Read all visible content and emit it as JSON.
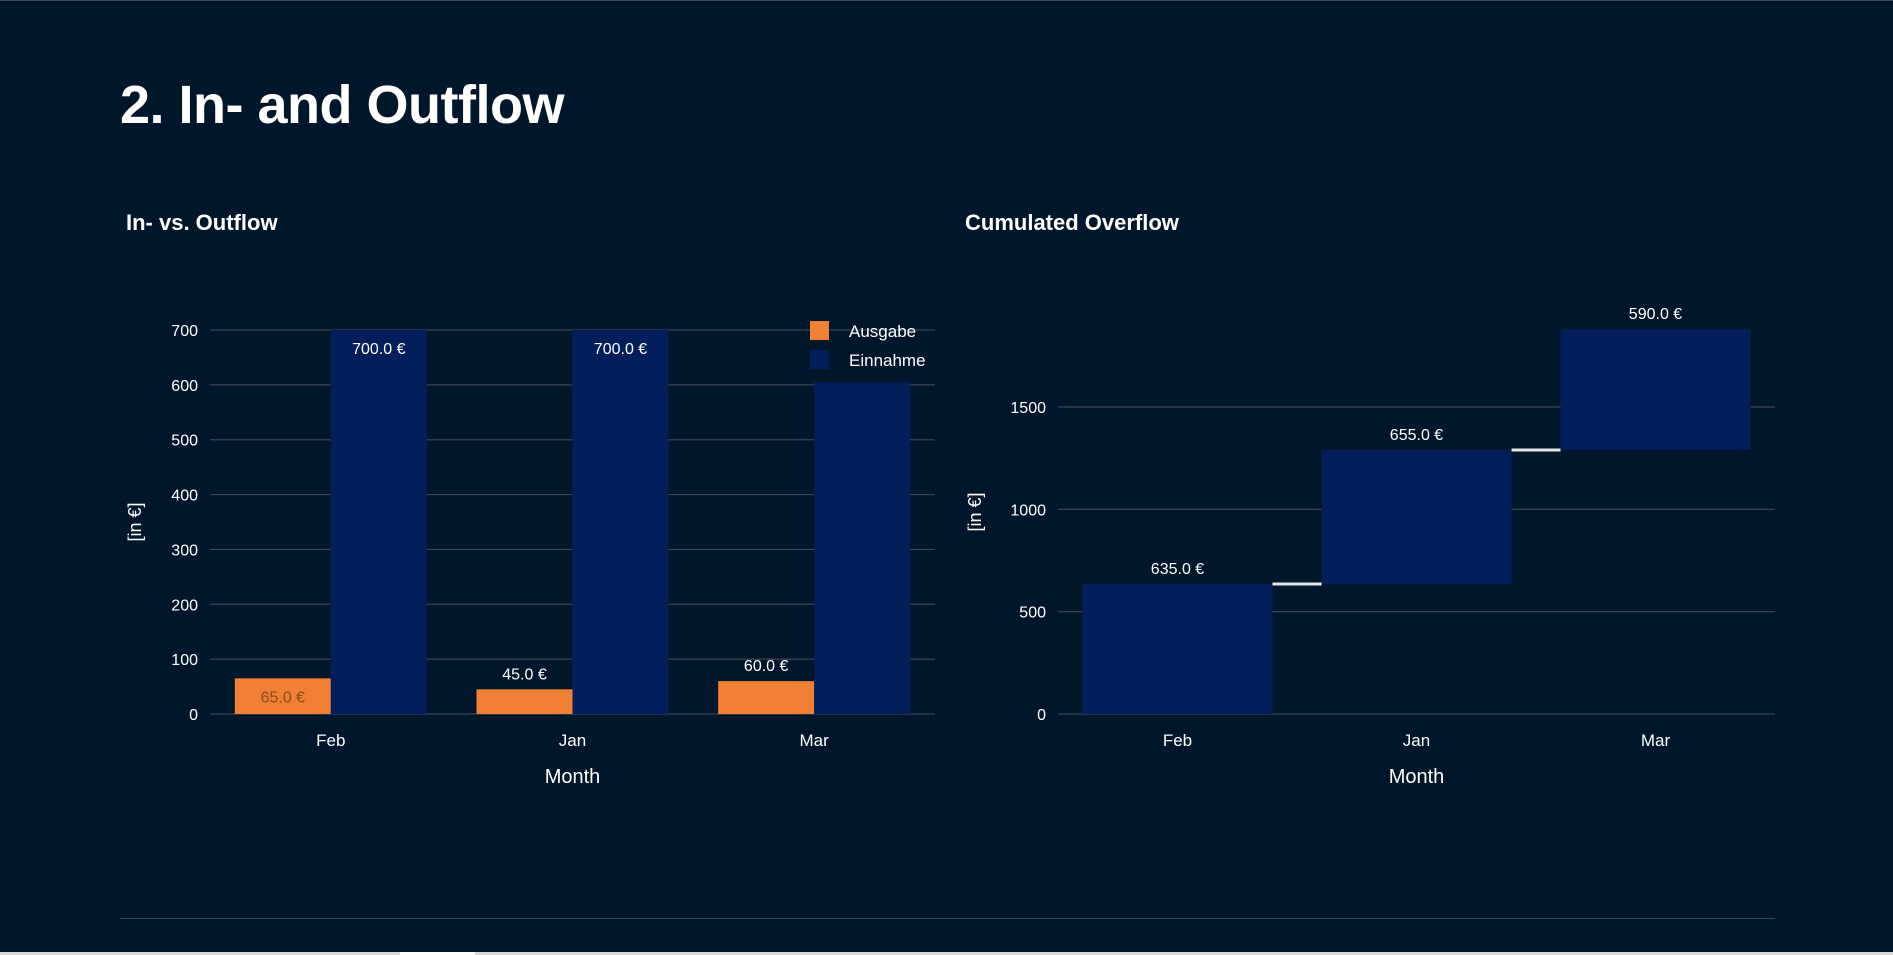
{
  "page": {
    "title": "2. In- and Outflow"
  },
  "colors": {
    "background": "#00162b",
    "einnahme": "#041e5c",
    "ausgabe": "#ef8035",
    "grid": "#3b4755",
    "connector": "#e6e6e6"
  },
  "chart_data": [
    {
      "type": "bar",
      "title": "In- vs. Outflow",
      "xlabel": "Month",
      "ylabel": "[in €]",
      "categories": [
        "Feb",
        "Jan",
        "Mar"
      ],
      "ylim": [
        0,
        700
      ],
      "yticks": [
        0,
        100,
        200,
        300,
        400,
        500,
        600,
        700
      ],
      "grid": true,
      "legend_position": "top-right",
      "series": [
        {
          "name": "Ausgabe",
          "values": [
            65,
            45,
            60
          ],
          "labels": [
            "65.0 €",
            "45.0 €",
            "60.0 €"
          ],
          "color": "#ef8035"
        },
        {
          "name": "Einnahme",
          "values": [
            700,
            700,
            605
          ],
          "labels": [
            "700.0 €",
            "700.0 €",
            ""
          ],
          "color": "#041e5c"
        }
      ]
    },
    {
      "type": "waterfall",
      "title": "Cumulated Overflow",
      "xlabel": "Month",
      "ylabel": "[in €]",
      "categories": [
        "Feb",
        "Jan",
        "Mar"
      ],
      "values": [
        635,
        655,
        590
      ],
      "labels": [
        "635.0 €",
        "655.0 €",
        "590.0 €"
      ],
      "yticks": [
        0,
        500,
        1000,
        1500
      ],
      "grid": true,
      "color": "#041e5c"
    }
  ]
}
